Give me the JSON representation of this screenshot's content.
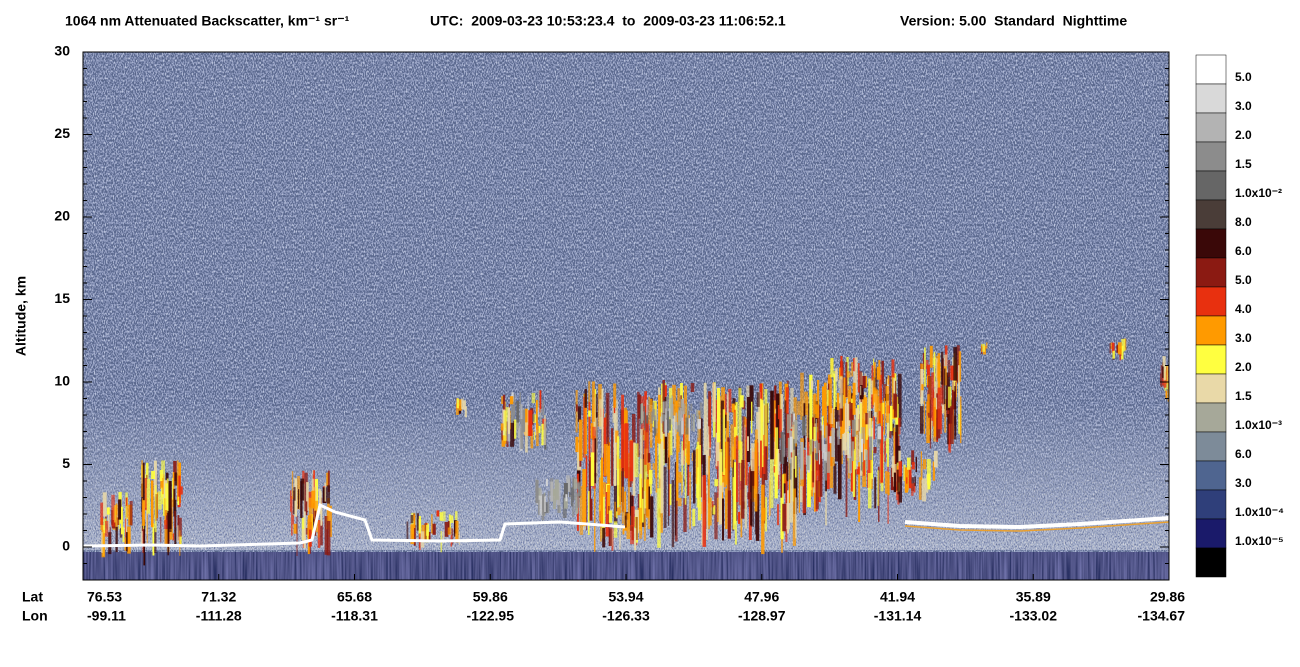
{
  "chart_data": {
    "type": "heatmap",
    "title": "1064 nm Attenuated Backscatter, km⁻¹ sr⁻¹",
    "time_range": "UTC:  2009-03-23 10:53:23.4  to  2009-03-23 11:06:52.1",
    "version": "Version: 5.00  Standard  Nighttime",
    "y_label": "Altitude, km",
    "ylim": [
      -2,
      30
    ],
    "yticks": [
      0,
      5,
      10,
      15,
      20,
      25,
      30
    ],
    "x_row_labels": [
      "Lat",
      "Lon"
    ],
    "lat": [
      76.53,
      71.32,
      65.68,
      59.86,
      53.94,
      47.96,
      41.94,
      35.89,
      29.86
    ],
    "lon": [
      -99.11,
      -111.28,
      -118.31,
      -122.95,
      -126.33,
      -128.97,
      -131.14,
      -133.02,
      -134.67
    ],
    "colorbar": {
      "colors": [
        "#ffffff",
        "#d9d9d9",
        "#b3b3b3",
        "#8c8c8c",
        "#666666",
        "#4a3d38",
        "#3a0808",
        "#8b1a12",
        "#e8300f",
        "#ff9a00",
        "#ffff40",
        "#e9d9a8",
        "#a6a899",
        "#7d8b99",
        "#4f6590",
        "#2f3f7a",
        "#1a1a6a",
        "#000000"
      ],
      "labels": [
        "5.0",
        "3.0",
        "2.0",
        "1.5",
        "1.0x10⁻²",
        "8.0",
        "6.0",
        "5.0",
        "4.0",
        "3.0",
        "2.0",
        "1.5",
        "1.0x10⁻³",
        "6.0",
        "3.0",
        "1.0x10⁻⁴",
        "1.0x10⁻⁵"
      ]
    }
  }
}
